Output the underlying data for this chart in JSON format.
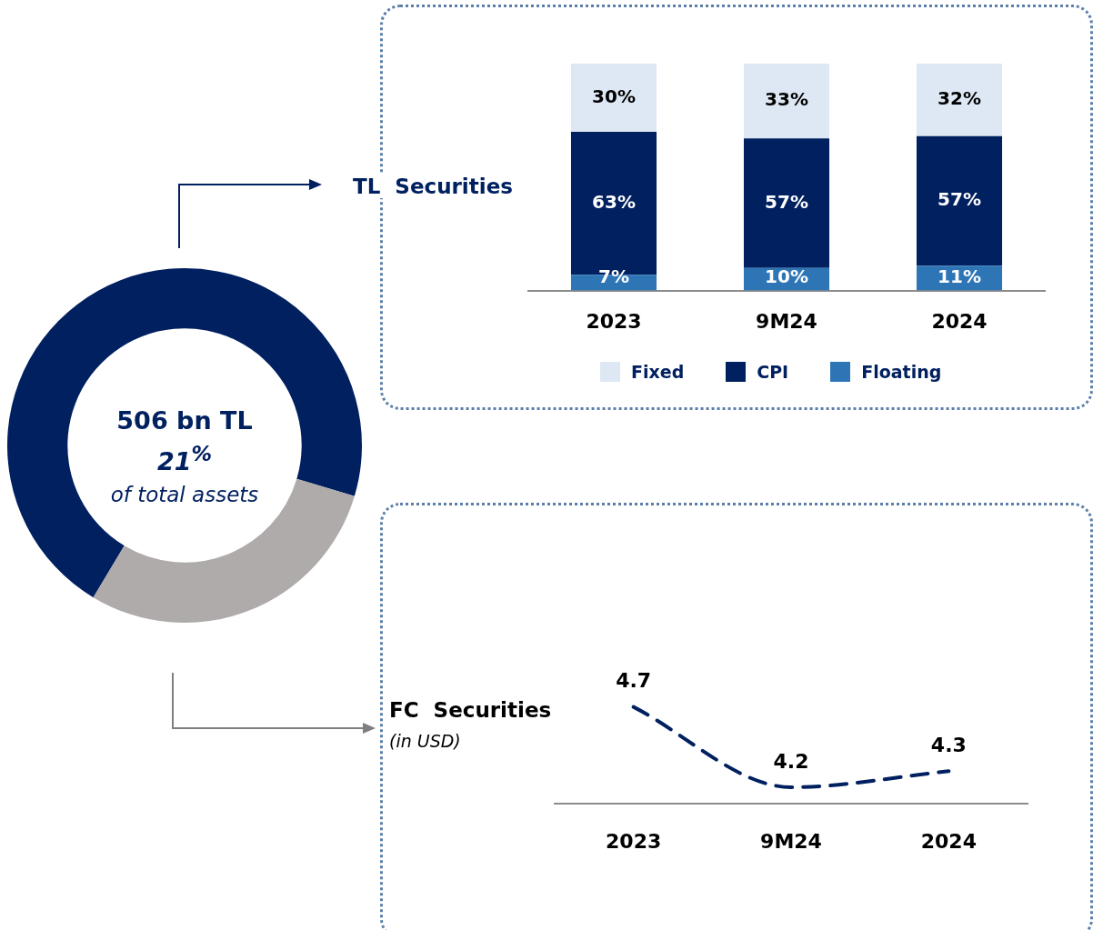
{
  "chart_data": [
    {
      "type": "donut",
      "categories": [
        null,
        null
      ],
      "values": [
        71,
        29
      ],
      "colors": [
        "#002060",
        "#afabab"
      ],
      "annotations": [
        "506 bn TL",
        "21$^{%}$",
        "of total assets"
      ]
    },
    {
      "type": "bar",
      "title": "TL  Securities",
      "categories": [
        "2023",
        "9M24",
        "2024"
      ],
      "stacked": true,
      "legend": "bottom",
      "series": [
        {
          "name": "Floating",
          "color": "#2e75b6",
          "values": [
            7,
            10,
            11
          ],
          "value_labels": [
            "7%",
            "10%",
            "11%"
          ]
        },
        {
          "name": "CPI",
          "color": "#002060",
          "values": [
            63,
            57,
            57
          ],
          "value_labels": [
            "63%",
            "57%",
            "57%"
          ]
        },
        {
          "name": "Fixed",
          "color": "#dee8f4",
          "values": [
            30,
            33,
            32
          ],
          "value_labels": [
            "30%",
            "33%",
            "32%"
          ]
        }
      ]
    },
    {
      "type": "line",
      "title": "FC  Securities",
      "subtitle": "(in USD)",
      "categories": [
        "2023",
        "9M24",
        "2024"
      ],
      "data_labels": true,
      "marker": "none",
      "line_style": "dashed",
      "series": [
        {
          "color": "#002060",
          "values": [
            4.7,
            4.2,
            4.3
          ]
        }
      ]
    }
  ]
}
